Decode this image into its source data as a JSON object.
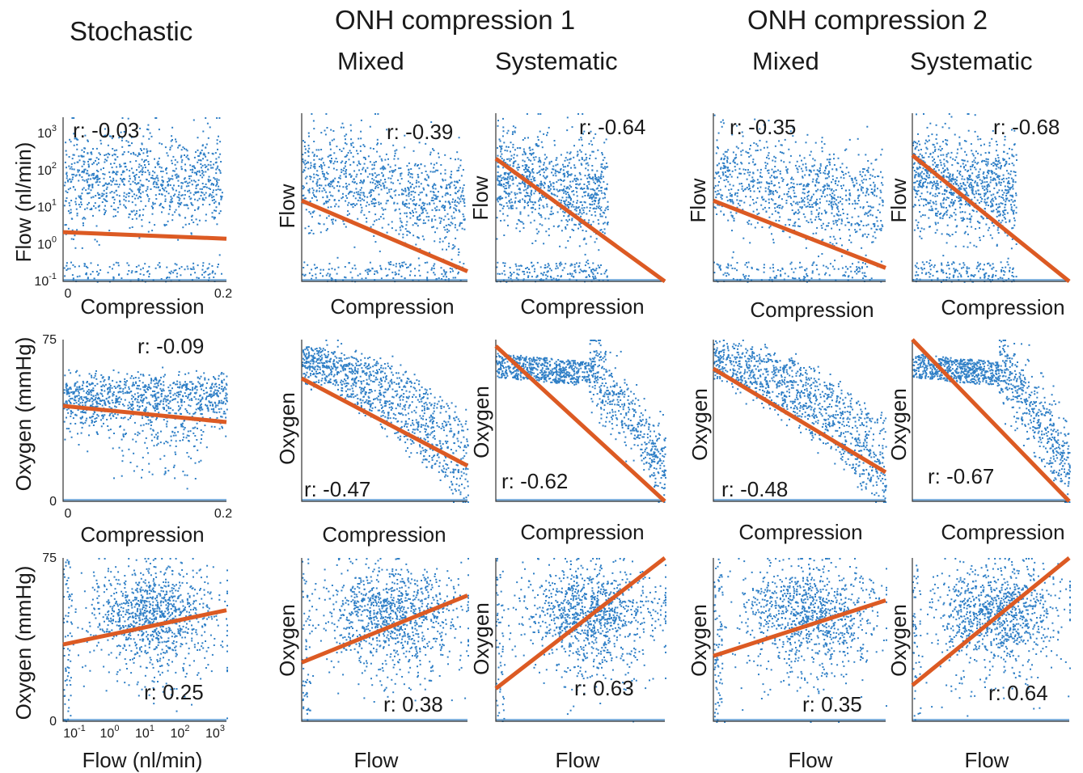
{
  "headers": {
    "stochastic": "Stochastic",
    "onh1": "ONH compression 1",
    "onh2": "ONH compression 2",
    "mixed_1": "Mixed",
    "systematic_1": "Systematic",
    "mixed_2": "Mixed",
    "systematic_2": "Systematic"
  },
  "colors": {
    "points": "#2f7fc6",
    "fit_line": "#dc5a23",
    "axis": "#333333"
  },
  "chart_data": [
    {
      "type": "scatter",
      "column": "Stochastic",
      "row": 1,
      "xlabel": "Compression",
      "ylabel": "Flow (nl/min)",
      "x_ticks": [
        "0",
        "0.2"
      ],
      "y_ticks": [
        "10-1",
        "100",
        "101",
        "102",
        "103"
      ],
      "y_scale": "log",
      "r_label": "r: -0.03",
      "fit_line_shape": [
        [
          0,
          0.3
        ],
        [
          1,
          0.26
        ]
      ]
    },
    {
      "type": "scatter",
      "column": "ONH compression 1 - Mixed",
      "row": 1,
      "xlabel": "Compression",
      "ylabel": "Flow",
      "x_ticks": [],
      "y_ticks": [],
      "r_label": "r: -0.39",
      "fit_line_shape": [
        [
          0,
          0.48
        ],
        [
          1,
          0.06
        ]
      ]
    },
    {
      "type": "scatter",
      "column": "ONH compression 1 - Systematic",
      "row": 1,
      "xlabel": "Compression",
      "ylabel": "Flow",
      "x_ticks": [],
      "y_ticks": [],
      "r_label": "r: -0.64",
      "fit_line_shape": [
        [
          0,
          0.73
        ],
        [
          1,
          0
        ]
      ]
    },
    {
      "type": "scatter",
      "column": "ONH compression 2 - Mixed",
      "row": 1,
      "xlabel": "Compression",
      "ylabel": "Flow",
      "x_ticks": [],
      "y_ticks": [],
      "r_label": "r: -0.35",
      "fit_line_shape": [
        [
          0,
          0.48
        ],
        [
          1,
          0.08
        ]
      ]
    },
    {
      "type": "scatter",
      "column": "ONH compression 2 - Systematic",
      "row": 1,
      "xlabel": "Compression",
      "ylabel": "Flow",
      "x_ticks": [],
      "y_ticks": [],
      "r_label": "r: -0.68",
      "fit_line_shape": [
        [
          0,
          0.75
        ],
        [
          1,
          0
        ]
      ]
    },
    {
      "type": "scatter",
      "column": "Stochastic",
      "row": 2,
      "xlabel": "Compression",
      "ylabel": "Oxygen (mmHg)",
      "x_ticks": [
        "0",
        "0.2"
      ],
      "y_ticks": [
        "0",
        "75"
      ],
      "r_label": "r: -0.09",
      "fit_line_shape": [
        [
          0,
          0.59
        ],
        [
          1,
          0.49
        ]
      ]
    },
    {
      "type": "scatter",
      "column": "ONH compression 1 - Mixed",
      "row": 2,
      "xlabel": "Compression",
      "ylabel": "Oxygen",
      "x_ticks": [],
      "y_ticks": [],
      "r_label": "r: -0.47",
      "fit_line_shape": [
        [
          0,
          0.76
        ],
        [
          1,
          0.22
        ]
      ]
    },
    {
      "type": "scatter",
      "column": "ONH compression 1 - Systematic",
      "row": 2,
      "xlabel": "Compression",
      "ylabel": "Oxygen",
      "x_ticks": [],
      "y_ticks": [],
      "r_label": "r: -0.62",
      "fit_line_shape": [
        [
          0,
          0.96
        ],
        [
          1,
          0
        ]
      ]
    },
    {
      "type": "scatter",
      "column": "ONH compression 2 - Mixed",
      "row": 2,
      "xlabel": "Compression",
      "ylabel": "Oxygen",
      "x_ticks": [],
      "y_ticks": [],
      "r_label": "r: -0.48",
      "fit_line_shape": [
        [
          0,
          0.82
        ],
        [
          1,
          0.18
        ]
      ]
    },
    {
      "type": "scatter",
      "column": "ONH compression 2 - Systematic",
      "row": 2,
      "xlabel": "Compression",
      "ylabel": "Oxygen",
      "x_ticks": [],
      "y_ticks": [],
      "r_label": "r: -0.67",
      "fit_line_shape": [
        [
          0,
          1
        ],
        [
          1,
          0
        ]
      ]
    },
    {
      "type": "scatter",
      "column": "Stochastic",
      "row": 3,
      "xlabel": "Flow (nl/min)",
      "ylabel": "Oxygen (mmHg)",
      "x_ticks": [
        "10-1",
        "100",
        "101",
        "102",
        "103"
      ],
      "y_ticks": [
        "0",
        "75"
      ],
      "x_scale": "log",
      "r_label": "r: 0.25",
      "fit_line_shape": [
        [
          0,
          0.47
        ],
        [
          1,
          0.68
        ]
      ]
    },
    {
      "type": "scatter",
      "column": "ONH compression 1 - Mixed",
      "row": 3,
      "xlabel": "Flow",
      "ylabel": "Oxygen",
      "x_ticks": [],
      "y_ticks": [],
      "r_label": "r: 0.38",
      "fit_line_shape": [
        [
          0,
          0.36
        ],
        [
          1,
          0.77
        ]
      ]
    },
    {
      "type": "scatter",
      "column": "ONH compression 1 - Systematic",
      "row": 3,
      "xlabel": "Flow",
      "ylabel": "Oxygen",
      "x_ticks": [],
      "y_ticks": [],
      "r_label": "r: 0.63",
      "fit_line_shape": [
        [
          0,
          0.2
        ],
        [
          1,
          1
        ]
      ]
    },
    {
      "type": "scatter",
      "column": "ONH compression 2 - Mixed",
      "row": 3,
      "xlabel": "Flow",
      "ylabel": "Oxygen",
      "x_ticks": [],
      "y_ticks": [],
      "r_label": "r: 0.35",
      "fit_line_shape": [
        [
          0,
          0.4
        ],
        [
          1,
          0.74
        ]
      ]
    },
    {
      "type": "scatter",
      "column": "ONH compression 2 - Systematic",
      "row": 3,
      "xlabel": "Flow",
      "ylabel": "Oxygen",
      "x_ticks": [],
      "y_ticks": [],
      "r_label": "r: 0.64",
      "fit_line_shape": [
        [
          0,
          0.22
        ],
        [
          1,
          1
        ]
      ]
    }
  ]
}
